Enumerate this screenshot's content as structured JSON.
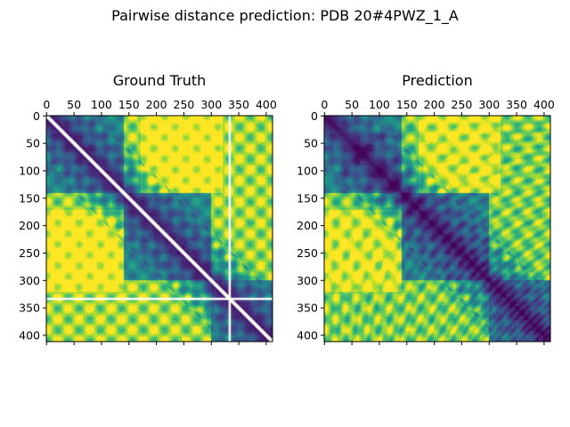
{
  "figure": {
    "suptitle": "Pairwise distance prediction: PDB 20#4PWZ_1_A"
  },
  "chart_data": [
    {
      "type": "heatmap",
      "title": "Ground Truth",
      "n": 412,
      "x_ticks": [
        "0",
        "50",
        "100",
        "150",
        "200",
        "250",
        "300",
        "350",
        "400"
      ],
      "y_ticks": [
        "0",
        "50",
        "100",
        "150",
        "200",
        "250",
        "300",
        "350",
        "400"
      ],
      "xlim": [
        0,
        411
      ],
      "ylim": [
        411,
        0
      ],
      "colormap": "viridis",
      "missing_residue_index": 334,
      "notes": "white diagonal and white row/column at index ~334 (missing values)"
    },
    {
      "type": "heatmap",
      "title": "Prediction",
      "n": 412,
      "x_ticks": [
        "0",
        "50",
        "100",
        "150",
        "200",
        "250",
        "300",
        "350",
        "400"
      ],
      "y_ticks": [
        "0",
        "50",
        "100",
        "150",
        "200",
        "250",
        "300",
        "350",
        "400"
      ],
      "xlim": [
        0,
        411
      ],
      "ylim": [
        411,
        0
      ],
      "colormap": "viridis"
    }
  ]
}
